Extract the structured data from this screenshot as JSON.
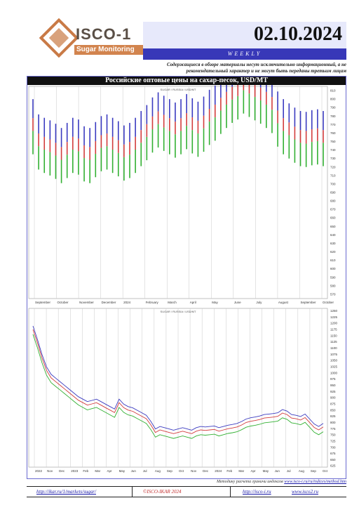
{
  "header": {
    "logo_name": "ISCO-1",
    "logo_tagline": "Sugar Monitoring",
    "date": "02.10.2024",
    "frequency": "WEEKLY",
    "disclaimer": "Содержащиеся в обзоре материалы несут исключительно информационный, а не рекомендательный характер и не могут быть переданы третьим лицам"
  },
  "chart_panel": {
    "title": "Российские оптовые цены на сахар-песок, USD/MT",
    "top_chart_caption": "SUGAR / RUSSIA / USD/MT",
    "bottom_chart_caption": "SUGAR / RUSSIA / USD/MT"
  },
  "footer": {
    "note": "Методику расчета граничи индексов",
    "note_link": "www.isco-i.ru/ru/indices/method.htm",
    "url1": "http://ikar.ru/1/markets/sugar/",
    "center": "©ISCO-IKAR 2024",
    "url2": "http://isco-i.ru",
    "url3": "www.isco2.ru"
  },
  "colors": {
    "high": "#3a3ac0",
    "mid": "#d23c3c",
    "low": "#32b032",
    "accent_bar": "#3838b8",
    "logo_orange": "#d2844e"
  },
  "chart_data": [
    {
      "type": "line",
      "title": "",
      "series": [
        {
          "name": "",
          "values": [
            770,
            752,
            748,
            745,
            741,
            736,
            742,
            748,
            746,
            738,
            736,
            743,
            750,
            752,
            748,
            744,
            739,
            742,
            748,
            756,
            763,
            772,
            778,
            774,
            770,
            766,
            770,
            776,
            771,
            767,
            773,
            781,
            786,
            794,
            801,
            807,
            811,
            818,
            814,
            810,
            806,
            801,
            795,
            779,
            770,
            765,
            760,
            756,
            755,
            757,
            758,
            756
          ]
        }
      ],
      "x_ticks": [
        "September",
        "October",
        "November",
        "December",
        "2024",
        "February",
        "March",
        "April",
        "May",
        "June",
        "July",
        "August",
        "September",
        "October"
      ],
      "y_ticks": [
        810,
        800,
        790,
        780,
        770,
        760,
        750,
        740,
        730,
        720,
        710,
        700,
        690,
        680,
        670,
        660,
        650,
        640,
        630,
        620,
        610,
        600,
        590,
        580,
        570
      ],
      "ylim": [
        565,
        815
      ]
    },
    {
      "type": "line",
      "title": "",
      "series": [
        {
          "name": "",
          "values": [
            1175,
            1120,
            1060,
            1010,
            980,
            965,
            950,
            935,
            920,
            905,
            890,
            880,
            870,
            875,
            880,
            870,
            860,
            850,
            840,
            880,
            860,
            850,
            845,
            835,
            825,
            815,
            790,
            760,
            770,
            765,
            760,
            755,
            760,
            765,
            760,
            755,
            765,
            770,
            768,
            770,
            772,
            765,
            770,
            775,
            778,
            782,
            790,
            800,
            805,
            808,
            812,
            818,
            820,
            822,
            825,
            838,
            832,
            818,
            815,
            810,
            820,
            800,
            780,
            770,
            782
          ]
        }
      ],
      "x_ticks": [
        "2022",
        "Nov",
        "Dec",
        "2023",
        "Feb",
        "Mar",
        "Apr",
        "May",
        "Jun",
        "Jul",
        "Aug",
        "Sep",
        "Oct",
        "Nov",
        "Dec",
        "2024",
        "Feb",
        "Mar",
        "Apr",
        "May",
        "Jun",
        "Jul",
        "Aug",
        "Sep",
        "Oct"
      ],
      "y_ticks": [
        1250,
        1225,
        1200,
        1175,
        1150,
        1125,
        1100,
        1075,
        1050,
        1025,
        1000,
        975,
        950,
        925,
        900,
        875,
        850,
        825,
        800,
        775,
        750,
        725,
        700,
        675,
        650,
        625
      ],
      "ylim": [
        620,
        1260
      ]
    }
  ]
}
